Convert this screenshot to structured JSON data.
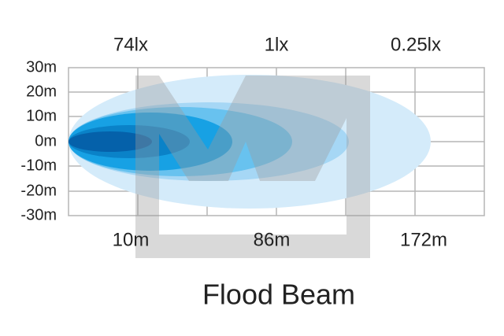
{
  "title": "Flood Beam",
  "top_labels": [
    "74lx",
    "1lx",
    "0.25lx"
  ],
  "bottom_labels": [
    "10m",
    "86m",
    "172m"
  ],
  "y_labels": [
    "30m",
    "20m",
    "10m",
    "0m",
    "-10m",
    "-20m",
    "-30m"
  ]
}
